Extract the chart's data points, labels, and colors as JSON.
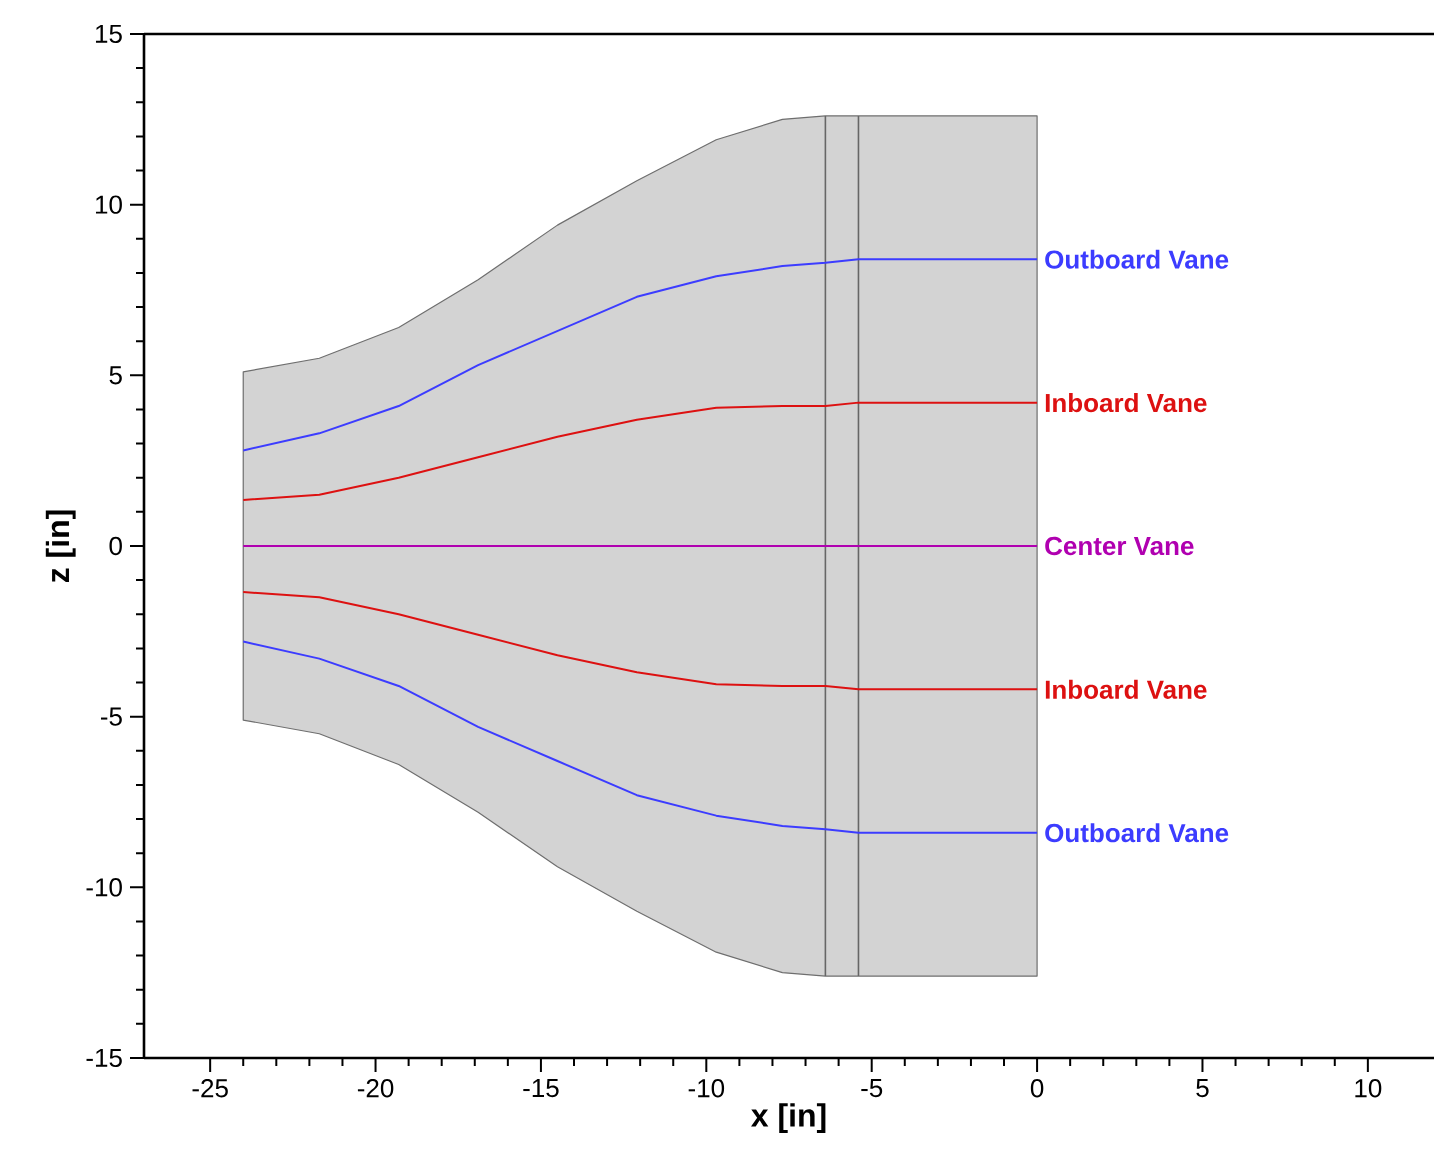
{
  "chart_data": {
    "type": "line",
    "xlabel": "x [in]",
    "ylabel": "z [in]",
    "xlim": [
      -27,
      12
    ],
    "ylim": [
      -15,
      15
    ],
    "xticks": [
      -25,
      -20,
      -15,
      -10,
      -5,
      0,
      5,
      10
    ],
    "yticks": [
      -15,
      -10,
      -5,
      0,
      5,
      10,
      15
    ],
    "grid": false,
    "marker": "none",
    "line_style": "solid",
    "x": [
      -24,
      -21.7,
      -19.3,
      -16.9,
      -14.5,
      -12.1,
      -9.7,
      -7.7,
      -6.4,
      -5.4,
      0
    ],
    "series": [
      {
        "type": "area",
        "color": "#d3d3d3",
        "values": [
          5.1,
          5.5,
          6.4,
          7.8,
          9.4,
          10.7,
          11.9,
          12.5,
          12.6,
          12.6,
          12.6
        ]
      },
      {
        "type": "area",
        "color": "#d3d3d3",
        "values": [
          -5.1,
          -5.5,
          -6.4,
          -7.8,
          -9.4,
          -10.7,
          -11.9,
          -12.5,
          -12.6,
          -12.6,
          -12.6
        ]
      },
      {
        "name": "Outboard Vane",
        "color": "#3c3cff",
        "values": [
          2.8,
          3.3,
          4.1,
          5.3,
          6.3,
          7.3,
          7.9,
          8.2,
          8.3,
          8.4,
          8.4
        ]
      },
      {
        "name": "Inboard Vane",
        "color": "#dd1111",
        "values": [
          1.35,
          1.5,
          2.0,
          2.6,
          3.2,
          3.7,
          4.05,
          4.1,
          4.1,
          4.2,
          4.2
        ]
      },
      {
        "name": "Center Vane",
        "color": "#b000b0",
        "values": [
          0,
          0,
          0,
          0,
          0,
          0,
          0,
          0,
          0,
          0,
          0
        ]
      },
      {
        "name": "Inboard Vane",
        "color": "#dd1111",
        "values": [
          -1.35,
          -1.5,
          -2.0,
          -2.6,
          -3.2,
          -3.7,
          -4.05,
          -4.1,
          -4.1,
          -4.2,
          -4.2
        ]
      },
      {
        "name": "Outboard Vane",
        "color": "#3c3cff",
        "values": [
          -2.8,
          -3.3,
          -4.1,
          -5.3,
          -6.3,
          -7.3,
          -7.9,
          -8.2,
          -8.3,
          -8.4,
          -8.4
        ]
      }
    ],
    "ref_lines": [
      {
        "axis": "x",
        "value": -6.4,
        "color": "#666666"
      },
      {
        "axis": "x",
        "value": -5.4,
        "color": "#666666"
      }
    ]
  }
}
